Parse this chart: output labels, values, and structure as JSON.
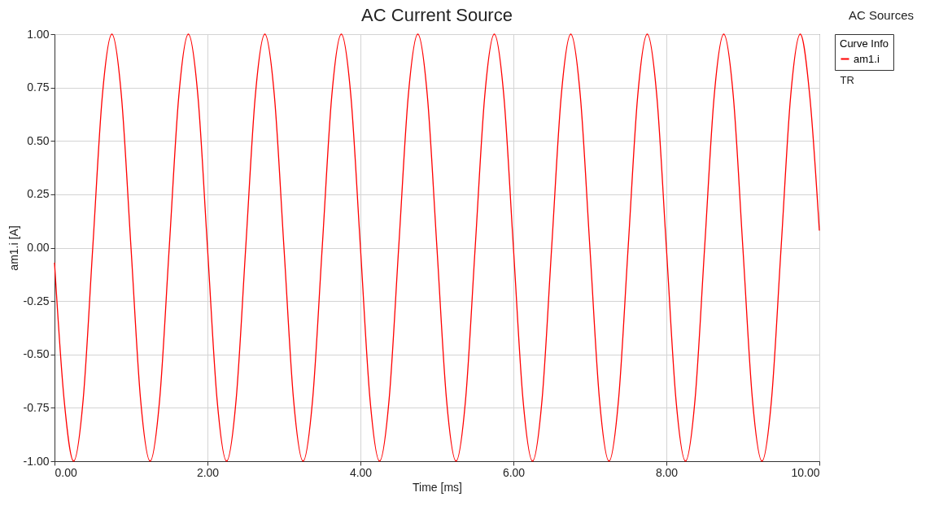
{
  "chart_data": {
    "type": "line",
    "title": "AC Current Source",
    "subtitle": "AC Sources",
    "xlabel": "Time [ms]",
    "ylabel": "am1.i [A]",
    "legend_title": "Curve Info",
    "annotations": [
      "TR"
    ],
    "x": [
      0,
      0.125,
      0.25,
      0.375,
      0.5,
      0.625,
      0.75,
      0.875,
      1,
      1.125,
      1.25,
      1.375,
      1.5,
      1.625,
      1.75,
      1.875,
      2,
      2.125,
      2.25,
      2.375,
      2.5,
      2.625,
      2.75,
      2.875,
      3,
      3.125,
      3.25,
      3.375,
      3.5,
      3.625,
      3.75,
      3.875,
      4,
      4.125,
      4.25,
      4.375,
      4.5,
      4.625,
      4.75,
      4.875,
      5,
      5.125,
      5.25,
      5.375,
      5.5,
      5.625,
      5.75,
      5.875,
      6,
      6.125,
      6.25,
      6.375,
      6.5,
      6.625,
      6.75,
      6.875,
      7,
      7.125,
      7.25,
      7.375,
      7.5,
      7.625,
      7.75,
      7.875,
      8,
      8.125,
      8.25,
      8.375,
      8.5,
      8.625,
      8.75,
      8.875,
      9,
      9.125,
      9.25,
      9.375,
      9.5,
      9.625,
      9.75,
      9.875,
      10
    ],
    "series": [
      {
        "name": "am1.i",
        "color": "#ff0000",
        "values": [
          -0.07,
          -0.71,
          -1,
          -0.71,
          0,
          0.71,
          1,
          0.71,
          0,
          -0.71,
          -1,
          -0.71,
          0,
          0.71,
          1,
          0.71,
          0,
          -0.71,
          -1,
          -0.71,
          0,
          0.71,
          1,
          0.71,
          0,
          -0.71,
          -1,
          -0.71,
          0,
          0.71,
          1,
          0.71,
          0,
          -0.71,
          -1,
          -0.71,
          0,
          0.71,
          1,
          0.71,
          0,
          -0.71,
          -1,
          -0.71,
          0,
          0.71,
          1,
          0.71,
          0,
          -0.71,
          -1,
          -0.71,
          0,
          0.71,
          1,
          0.71,
          0,
          -0.71,
          -1,
          -0.71,
          0,
          0.71,
          1,
          0.71,
          0,
          -0.71,
          -1,
          -0.71,
          0,
          0.71,
          1,
          0.71,
          0,
          -0.71,
          -1,
          -0.71,
          0,
          0.71,
          1,
          0.71,
          0.08
        ]
      }
    ],
    "xlim": [
      0,
      10
    ],
    "xticks": [
      {
        "value": 0,
        "label": "0.00"
      },
      {
        "value": 2,
        "label": "2.00"
      },
      {
        "value": 4,
        "label": "4.00"
      },
      {
        "value": 6,
        "label": "6.00"
      },
      {
        "value": 8,
        "label": "8.00"
      },
      {
        "value": 10,
        "label": "10.00"
      }
    ],
    "ylim": [
      -1,
      1
    ],
    "yticks": [
      {
        "value": -1,
        "label": "-1.00"
      },
      {
        "value": -0.75,
        "label": "-0.75"
      },
      {
        "value": -0.5,
        "label": "-0.50"
      },
      {
        "value": -0.25,
        "label": "-0.25"
      },
      {
        "value": 0,
        "label": "0.00"
      },
      {
        "value": 0.25,
        "label": "0.25"
      },
      {
        "value": 0.5,
        "label": "0.50"
      },
      {
        "value": 0.75,
        "label": "0.75"
      },
      {
        "value": 1,
        "label": "1.00"
      }
    ],
    "grid": true,
    "legend": "right",
    "line_style": "solid"
  }
}
